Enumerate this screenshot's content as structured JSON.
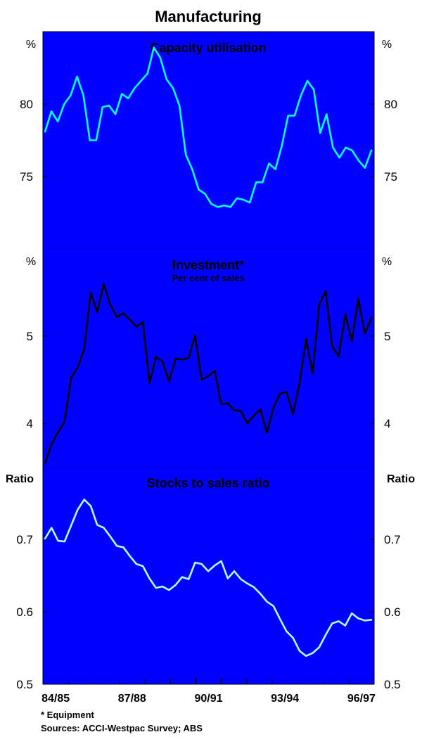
{
  "chart_data": {
    "title": "Manufacturing",
    "x_tick_labels": [
      "84/85",
      "87/88",
      "90/91",
      "93/94",
      "96/97"
    ],
    "footnote": "*  Equipment",
    "source": "Sources: ACCI-Westpac Survey; ABS",
    "panels": [
      {
        "type": "line",
        "title": "Capacity utilisation",
        "subtitle": "",
        "unit_left": "%",
        "unit_right": "%",
        "ylim": [
          70,
          85
        ],
        "yticks": [
          75,
          80
        ],
        "ytick_labels": [
          "75",
          "80"
        ],
        "color": "#00ffff",
        "values": [
          78.1,
          79.5,
          78.8,
          80.0,
          80.6,
          81.9,
          80.6,
          77.5,
          77.5,
          79.8,
          79.9,
          79.3,
          80.7,
          80.4,
          81.1,
          81.6,
          82.1,
          83.9,
          83.2,
          81.7,
          81.1,
          79.9,
          76.5,
          75.5,
          74.1,
          73.8,
          73.1,
          72.9,
          73.0,
          72.9,
          73.5,
          73.4,
          73.2,
          74.6,
          74.6,
          75.9,
          75.5,
          77.1,
          79.2,
          79.2,
          80.6,
          81.6,
          81.0,
          78.0,
          79.3,
          77.0,
          76.3,
          77.0,
          76.8,
          76.1,
          75.6,
          76.8
        ]
      },
      {
        "type": "line",
        "title": "Investment*",
        "subtitle": "Per cent of sales",
        "unit_left": "%",
        "unit_right": "%",
        "ylim": [
          3.5,
          6.0
        ],
        "yticks": [
          4,
          5
        ],
        "ytick_labels": [
          "4",
          "5"
        ],
        "color": "#000000",
        "values": [
          3.54,
          3.76,
          3.9,
          4.02,
          4.52,
          4.64,
          4.85,
          5.5,
          5.27,
          5.6,
          5.36,
          5.22,
          5.26,
          5.19,
          5.11,
          5.16,
          4.46,
          4.76,
          4.71,
          4.48,
          4.74,
          4.73,
          4.75,
          5.01,
          4.5,
          4.54,
          4.6,
          4.22,
          4.23,
          4.15,
          4.14,
          4.0,
          4.09,
          4.16,
          3.89,
          4.18,
          4.34,
          4.36,
          4.11,
          4.46,
          4.97,
          4.57,
          5.36,
          5.52,
          4.88,
          4.77,
          5.25,
          4.94,
          5.43,
          5.03,
          5.21
        ]
      },
      {
        "type": "line",
        "title": "Stocks to sales ratio",
        "subtitle": "",
        "unit_left": "Ratio",
        "unit_right": "Ratio",
        "ylim": [
          0.5,
          0.8
        ],
        "yticks": [
          0.5,
          0.6,
          0.7
        ],
        "ytick_labels": [
          "0.5",
          "0.6",
          "0.7"
        ],
        "color": "#aaffff",
        "values": [
          0.701,
          0.716,
          0.698,
          0.697,
          0.719,
          0.741,
          0.755,
          0.746,
          0.72,
          0.716,
          0.704,
          0.691,
          0.689,
          0.677,
          0.666,
          0.663,
          0.646,
          0.633,
          0.635,
          0.63,
          0.637,
          0.648,
          0.645,
          0.668,
          0.666,
          0.656,
          0.664,
          0.67,
          0.646,
          0.656,
          0.645,
          0.639,
          0.634,
          0.625,
          0.614,
          0.608,
          0.59,
          0.573,
          0.564,
          0.546,
          0.539,
          0.543,
          0.551,
          0.568,
          0.584,
          0.587,
          0.581,
          0.598,
          0.591,
          0.588,
          0.589
        ]
      }
    ]
  }
}
